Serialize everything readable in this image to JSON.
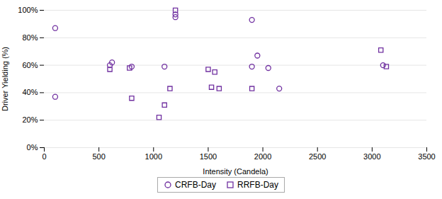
{
  "chart_data": {
    "type": "scatter",
    "xlabel": "Intensity (Candela)",
    "ylabel": "Driver Yielding (%)",
    "xlim": [
      0,
      3500
    ],
    "ylim": [
      0,
      1.0
    ],
    "xticks": [
      0,
      500,
      1000,
      1500,
      2000,
      2500,
      3000,
      3500
    ],
    "yticks": [
      {
        "value": 0.0,
        "label": "0%"
      },
      {
        "value": 0.2,
        "label": "20%"
      },
      {
        "value": 0.4,
        "label": "40%"
      },
      {
        "value": 0.6,
        "label": "60%"
      },
      {
        "value": 0.8,
        "label": "80%"
      },
      {
        "value": 1.0,
        "label": "100%"
      }
    ],
    "grid": "y",
    "legend": "bottom",
    "series": [
      {
        "name": "CRFB-Day",
        "color": "#7030A0",
        "marker": "circle",
        "x": [
          100,
          100,
          600,
          620,
          800,
          1100,
          1200,
          1200,
          1900,
          1900,
          1950,
          2050,
          2150,
          3100
        ],
        "values": [
          0.87,
          0.37,
          0.6,
          0.62,
          0.59,
          0.59,
          0.97,
          0.95,
          0.93,
          0.59,
          0.67,
          0.58,
          0.43,
          0.6
        ]
      },
      {
        "name": "RRFB-Day",
        "color": "#7030A0",
        "marker": "square",
        "x": [
          600,
          780,
          800,
          1050,
          1100,
          1150,
          1200,
          1500,
          1530,
          1560,
          1600,
          1900,
          3080,
          3130
        ],
        "values": [
          0.57,
          0.58,
          0.36,
          0.22,
          0.31,
          0.43,
          1.0,
          0.57,
          0.44,
          0.55,
          0.43,
          0.43,
          0.71,
          0.59
        ]
      }
    ]
  }
}
